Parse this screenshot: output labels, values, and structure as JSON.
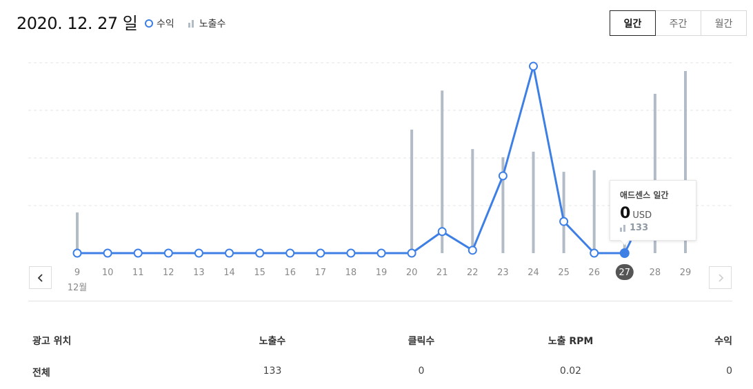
{
  "header": {
    "date_title": "2020. 12. 27 일",
    "legend": {
      "revenue": "수익",
      "impressions": "노출수"
    },
    "period_tabs": [
      {
        "label": "일간",
        "active": true
      },
      {
        "label": "주간",
        "active": false
      },
      {
        "label": "월간",
        "active": false
      }
    ]
  },
  "colors": {
    "revenue": "#3d7fe5",
    "impressions": "#b2bcc6",
    "selected_tick_bg": "#555555"
  },
  "icons": {
    "prev": "chevron-left-icon",
    "next": "chevron-right-icon",
    "impression_legend": "bar-chart-icon"
  },
  "chart_data": {
    "type": "line",
    "categories": [
      "9",
      "10",
      "11",
      "12",
      "13",
      "14",
      "15",
      "16",
      "17",
      "18",
      "19",
      "20",
      "21",
      "22",
      "23",
      "24",
      "25",
      "26",
      "27",
      "28",
      "29"
    ],
    "month_label": "12월",
    "selected": "27",
    "series": [
      {
        "name": "수익",
        "type": "line",
        "values": [
          0,
          0,
          0,
          0,
          0,
          0,
          0,
          0,
          0,
          0,
          0,
          0,
          0.6,
          0.08,
          2.15,
          5.2,
          0.88,
          0,
          0,
          null,
          null
        ]
      },
      {
        "name": "노출수",
        "type": "bar",
        "values": [
          125,
          0,
          0,
          0,
          0,
          0,
          0,
          0,
          0,
          0,
          0,
          380,
          500,
          320,
          295,
          312,
          250,
          255,
          133,
          490,
          560
        ]
      }
    ],
    "revenue_ylim": [
      0,
      5.7
    ],
    "impressions_ylim": [
      0,
      630
    ],
    "grid": true
  },
  "tooltip": {
    "title": "애드센스 일간",
    "revenue": "0",
    "unit": "USD",
    "impressions": "133"
  },
  "table": {
    "headers": [
      "광고 위치",
      "노출수",
      "클릭수",
      "노출 RPM",
      "수익"
    ],
    "rows": [
      [
        "전체",
        "133",
        "0",
        "0.02",
        "0"
      ]
    ]
  }
}
